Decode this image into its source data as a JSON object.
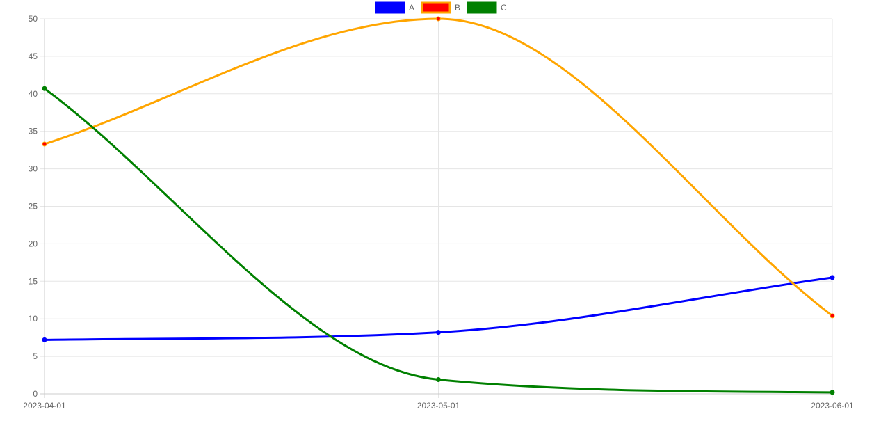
{
  "chart_data": {
    "type": "line",
    "x": [
      "2023-04-01",
      "2023-05-01",
      "2023-06-01"
    ],
    "y_ticks": [
      0,
      5,
      10,
      15,
      20,
      25,
      30,
      35,
      40,
      45,
      50
    ],
    "ylim": [
      0,
      50
    ],
    "grid": true,
    "legend_position": "top-center",
    "series": [
      {
        "name": "A",
        "values": [
          7.2,
          8.2,
          15.5
        ],
        "line_color": "#0000ff",
        "point_color": "#0000ff"
      },
      {
        "name": "B",
        "values": [
          33.3,
          50.0,
          10.4
        ],
        "line_color": "#ffa500",
        "point_color": "#ff0000"
      },
      {
        "name": "C",
        "values": [
          40.7,
          1.9,
          0.2
        ],
        "line_color": "#008000",
        "point_color": "#008000"
      }
    ]
  }
}
